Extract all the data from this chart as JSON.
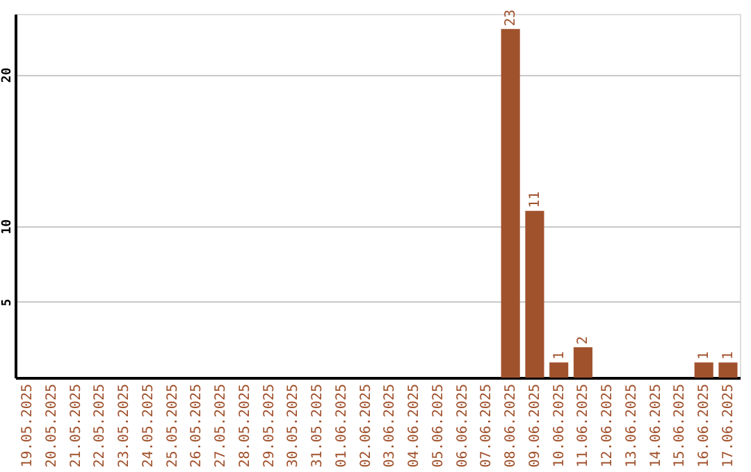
{
  "chart_data": {
    "type": "bar",
    "categories": [
      "19.05.2025",
      "20.05.2025",
      "21.05.2025",
      "22.05.2025",
      "23.05.2025",
      "24.05.2025",
      "25.05.2025",
      "26.05.2025",
      "27.05.2025",
      "28.05.2025",
      "29.05.2025",
      "30.05.2025",
      "31.05.2025",
      "01.06.2025",
      "02.06.2025",
      "03.06.2025",
      "04.06.2025",
      "05.06.2025",
      "06.06.2025",
      "07.06.2025",
      "08.06.2025",
      "09.06.2025",
      "10.06.2025",
      "11.06.2025",
      "12.06.2025",
      "13.06.2025",
      "14.06.2025",
      "15.06.2025",
      "16.06.2025",
      "17.06.2025"
    ],
    "values": [
      0,
      0,
      0,
      0,
      0,
      0,
      0,
      0,
      0,
      0,
      0,
      0,
      0,
      0,
      0,
      0,
      0,
      0,
      0,
      0,
      23,
      11,
      1,
      2,
      0,
      0,
      0,
      0,
      1,
      1
    ],
    "value_labels": [
      null,
      null,
      null,
      null,
      null,
      null,
      null,
      null,
      null,
      null,
      null,
      null,
      null,
      null,
      null,
      null,
      null,
      null,
      null,
      null,
      "23",
      "11",
      "1",
      "2",
      null,
      null,
      null,
      null,
      "1",
      "1"
    ],
    "color": "#a0522d",
    "ylim": [
      0,
      24
    ],
    "yticks": [
      5,
      10,
      20
    ],
    "grid": "y"
  }
}
